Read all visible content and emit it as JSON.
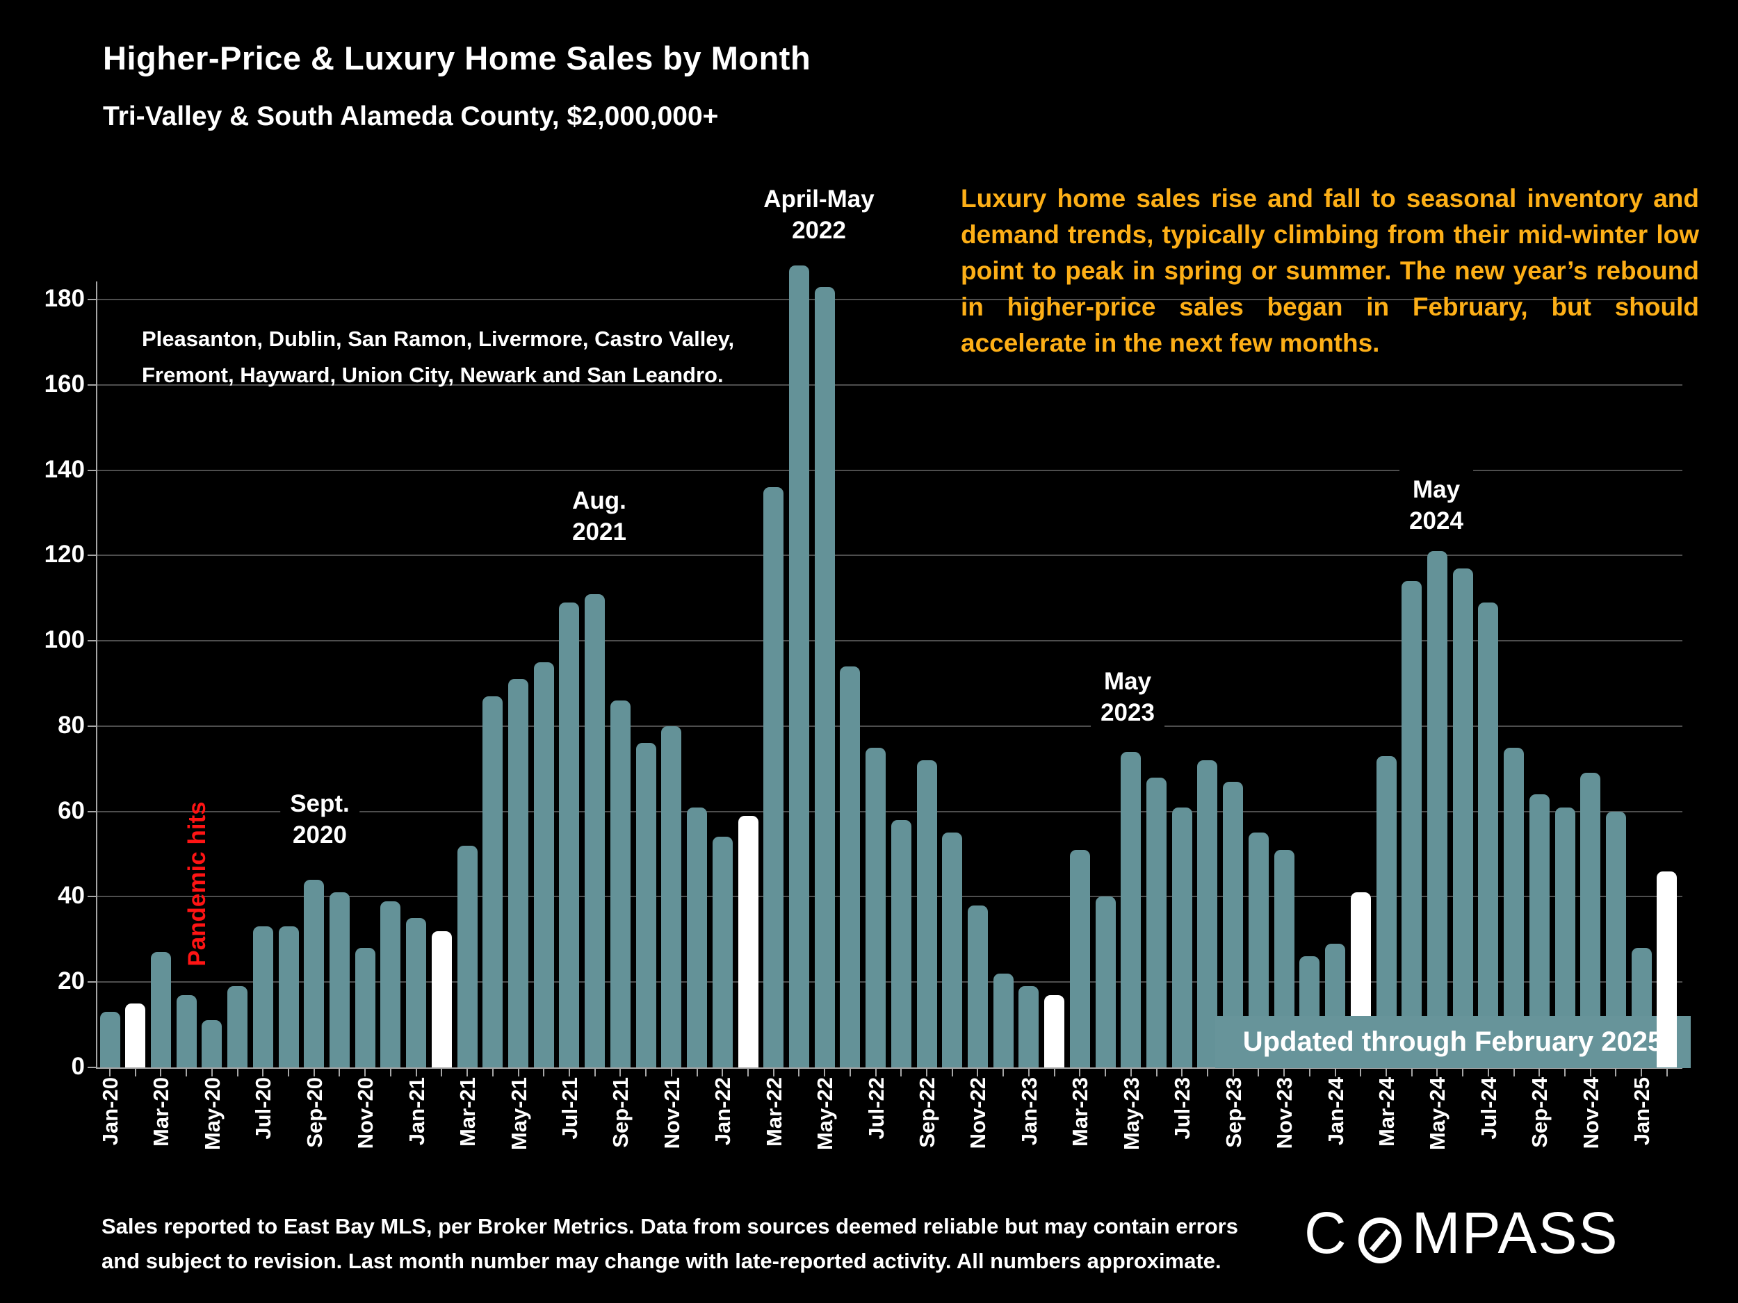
{
  "title": "Higher-Price & Luxury Home Sales by Month",
  "subtitle": "Tri-Valley & South Alameda County, $2,000,000+",
  "locations_note": {
    "line1": "Pleasanton, Dublin, San Ramon, Livermore, Castro Valley,",
    "line2": "Fremont, Hayward, Union City, Newark and San Leandro."
  },
  "commentary": "Luxury home sales rise and fall to seasonal inventory and demand trends, typically climbing from their mid-winter low point to peak in spring or summer. The new year’s rebound in higher-price sales began in February, but should accelerate in the next few months.",
  "annotations": {
    "pandemic": {
      "text": "Pandemic hits"
    },
    "sept2020": {
      "line1": "Sept.",
      "line2": "2020"
    },
    "aug2021": {
      "line1": "Aug.",
      "line2": "2021"
    },
    "aprmay2022": {
      "line1": "April-May",
      "line2": "2022"
    },
    "may2023": {
      "line1": "May",
      "line2": "2023"
    },
    "may2024": {
      "line1": "May",
      "line2": "2024"
    }
  },
  "update_box": {
    "label": "Updated through February 2025"
  },
  "footer": {
    "line1": "Sales reported to East Bay MLS, per Broker Metrics. Data from sources deemed reliable but may contain errors",
    "line2": "and subject to revision. Last month number may change with late-reported activity. All numbers approximate."
  },
  "logo": {
    "brand_left": "C",
    "brand_right": "MPASS",
    "o_icon": "slashed-o-compass-icon"
  },
  "colors": {
    "background": "#000000",
    "bar": "#649298",
    "bar_highlight": "#ffffff",
    "update_box": "#67949A",
    "accent_orange": "#FDAF17",
    "accent_red": "#FF1414",
    "gridline": "#4e4e4e",
    "axis": "#a6a6a6",
    "text": "#ffffff"
  },
  "chart_data": {
    "type": "bar",
    "title": "Higher-Price & Luxury Home Sales by Month",
    "xlabel": "",
    "ylabel": "",
    "ylim": [
      0,
      190
    ],
    "ytick_step": 20,
    "yticks": [
      0,
      20,
      40,
      60,
      80,
      100,
      120,
      140,
      160,
      180
    ],
    "grid": true,
    "x_tick_label_interval": 2,
    "highlight_note": "February of each year shown as white bar",
    "highlighted_categories": [
      "Feb-20",
      "Feb-21",
      "Feb-22",
      "Feb-23",
      "Feb-24",
      "Feb-25"
    ],
    "categories": [
      "Jan-20",
      "Feb-20",
      "Mar-20",
      "Apr-20",
      "May-20",
      "Jun-20",
      "Jul-20",
      "Aug-20",
      "Sep-20",
      "Oct-20",
      "Nov-20",
      "Dec-20",
      "Jan-21",
      "Feb-21",
      "Mar-21",
      "Apr-21",
      "May-21",
      "Jun-21",
      "Jul-21",
      "Aug-21",
      "Sep-21",
      "Oct-21",
      "Nov-21",
      "Dec-21",
      "Jan-22",
      "Feb-22",
      "Mar-22",
      "Apr-22",
      "May-22",
      "Jun-22",
      "Jul-22",
      "Aug-22",
      "Sep-22",
      "Oct-22",
      "Nov-22",
      "Dec-22",
      "Jan-23",
      "Feb-23",
      "Mar-23",
      "Apr-23",
      "May-23",
      "Jun-23",
      "Jul-23",
      "Aug-23",
      "Sep-23",
      "Oct-23",
      "Nov-23",
      "Dec-23",
      "Jan-24",
      "Feb-24",
      "Mar-24",
      "Apr-24",
      "May-24",
      "Jun-24",
      "Jul-24",
      "Aug-24",
      "Sep-24",
      "Oct-24",
      "Nov-24",
      "Dec-24",
      "Jan-25",
      "Feb-25"
    ],
    "values": [
      13,
      15,
      27,
      17,
      11,
      19,
      33,
      33,
      44,
      41,
      28,
      39,
      35,
      32,
      52,
      87,
      91,
      95,
      109,
      111,
      86,
      76,
      80,
      61,
      54,
      59,
      136,
      188,
      183,
      94,
      75,
      58,
      72,
      55,
      38,
      22,
      19,
      17,
      51,
      40,
      74,
      68,
      61,
      72,
      67,
      55,
      51,
      26,
      29,
      41,
      73,
      114,
      121,
      117,
      109,
      75,
      64,
      61,
      69,
      60,
      28,
      46
    ]
  }
}
